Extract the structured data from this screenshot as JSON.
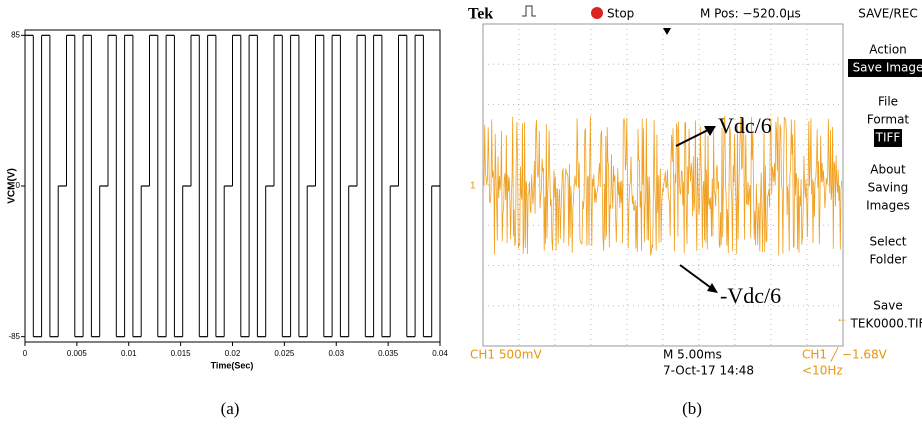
{
  "chart_data": {
    "type": "step",
    "ylabel": "VCM(V)",
    "xlabel": "Time(Sec)",
    "caption": "(a)",
    "x": [
      0,
      0.0008,
      0.0016,
      0.0024,
      0.0032,
      0.004,
      0.0048,
      0.0056,
      0.0064,
      0.0072,
      0.008,
      0.0088,
      0.0096,
      0.0104,
      0.0112,
      0.012,
      0.0128,
      0.0136,
      0.0144,
      0.0152,
      0.016,
      0.0168,
      0.0176,
      0.0184,
      0.0192,
      0.02,
      0.0208,
      0.0216,
      0.0224,
      0.0232,
      0.024,
      0.0248,
      0.0256,
      0.0264,
      0.0272,
      0.028,
      0.0288,
      0.0296,
      0.0304,
      0.0312,
      0.032,
      0.0328,
      0.0336,
      0.0344,
      0.0352,
      0.036,
      0.0368,
      0.0376,
      0.0384,
      0.0392
    ],
    "values": [
      85,
      -85,
      85,
      -85,
      0,
      85,
      -85,
      85,
      -85,
      0,
      85,
      -85,
      85,
      -85,
      0,
      85,
      -85,
      85,
      -85,
      0,
      85,
      -85,
      85,
      -85,
      0,
      85,
      -85,
      85,
      -85,
      0,
      85,
      -85,
      85,
      -85,
      0,
      85,
      -85,
      85,
      -85,
      0,
      85,
      -85,
      85,
      -85,
      0,
      85,
      -85,
      85,
      -85,
      0
    ],
    "color": "#000000",
    "xlim": [
      0,
      0.04
    ],
    "ylim": [
      -88,
      88
    ],
    "xticks": [
      0,
      0.005,
      0.01,
      0.015,
      0.02,
      0.025,
      0.03,
      0.035,
      0.04
    ],
    "yticks": [
      -85,
      0,
      85
    ]
  },
  "scope": {
    "brand": "Tek",
    "state": "Stop",
    "mpos": "M Pos: −520.0µs",
    "menu": {
      "title": "SAVE/REC",
      "items": [
        "Action",
        "Save Image",
        "File",
        "Format",
        "TIFF",
        "About",
        "Saving",
        "Images",
        "Select",
        "Folder",
        "Save",
        "TEK0000.TIF"
      ]
    },
    "ch1": "CH1  500mV",
    "timebase": "M 5.00ms",
    "date": "7-Oct-17 14:48",
    "trigger": "CH1 ╱ −1.68V",
    "freq": "<10Hz",
    "marker": "1",
    "upper": "Vdc/6",
    "lower": "-Vdc/6",
    "caption": "(b)"
  }
}
